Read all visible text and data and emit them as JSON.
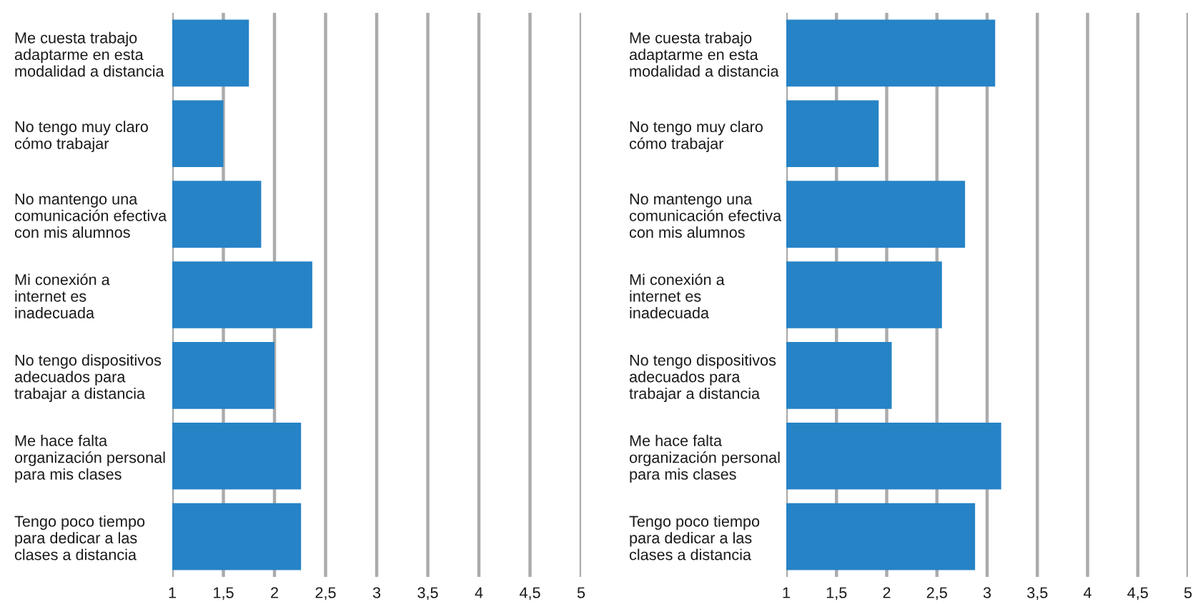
{
  "chart_data": [
    {
      "type": "bar",
      "orientation": "horizontal",
      "categories": [
        "Me cuesta trabajo\nadaptarme en esta\nmodalidad a distancia",
        "No tengo muy claro\ncómo trabajar",
        "No mantengo una\ncomunicación efectiva\ncon mis alumnos",
        "Mi conexión a\ninternet es\ninadecuada",
        "No tengo dispositivos\nadecuados para\ntrabajar a distancia",
        "Me hace falta\norganización personal\npara mis clases",
        "Tengo poco tiempo\npara dedicar a las\nclases a distancia"
      ],
      "values": [
        1.75,
        1.5,
        1.87,
        2.37,
        2.0,
        2.26,
        2.26
      ],
      "color": "#2683c6",
      "xlim": [
        1,
        5
      ],
      "xticks": [
        1,
        {
          "value": 1.5,
          "label": "1,5"
        },
        2,
        {
          "value": 2.5,
          "label": "2,5"
        },
        3,
        {
          "value": 3.5,
          "label": "3,5"
        },
        4,
        {
          "value": 4.5,
          "label": "4,5"
        },
        5
      ],
      "grid": "x"
    },
    {
      "type": "bar",
      "orientation": "horizontal",
      "categories": [
        "Me cuesta trabajo\nadaptarme en esta\nmodalidad a distancia",
        "No tengo muy claro\ncómo trabajar",
        "No mantengo una\ncomunicación efectiva\ncon mis alumnos",
        "Mi conexión a\ninternet es\ninadecuada",
        "No tengo dispositivos\nadecuados para\ntrabajar a distancia",
        "Me hace falta\norganización personal\npara mis clases",
        "Tengo poco tiempo\npara dedicar a las\nclases a distancia"
      ],
      "values": [
        3.08,
        1.92,
        2.78,
        2.55,
        2.05,
        3.14,
        2.88
      ],
      "color": "#2683c6",
      "xlim": [
        1,
        5
      ],
      "xticks": [
        1,
        {
          "value": 1.5,
          "label": "1,5"
        },
        2,
        {
          "value": 2.5,
          "label": "2,5"
        },
        3,
        {
          "value": 3.5,
          "label": "3,5"
        },
        4,
        {
          "value": 4.5,
          "label": "4,5"
        },
        5
      ],
      "grid": "x"
    }
  ]
}
